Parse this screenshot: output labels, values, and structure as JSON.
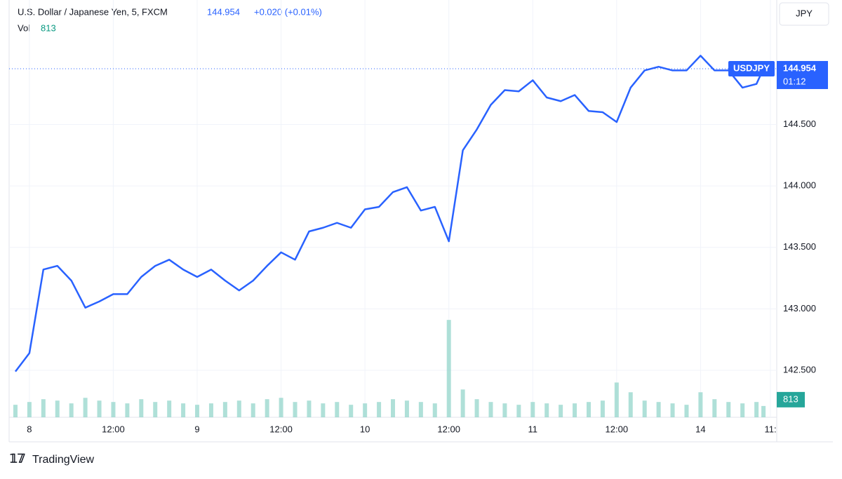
{
  "chart_data": {
    "type": "line",
    "title": "U.S. Dollar / Japanese Yen, 5, FXCM",
    "last_price": 144.954,
    "change": "+0.020 (+0.01%)",
    "last_volume": 813,
    "currency": "JPY",
    "countdown": "01:12",
    "brand": "TradingView",
    "grid": true,
    "x": [
      -2,
      0,
      2,
      4,
      6,
      8,
      10,
      12,
      14,
      16,
      18,
      20,
      22,
      24,
      26,
      28,
      30,
      32,
      34,
      36,
      38,
      40,
      42,
      44,
      46,
      48,
      50,
      52,
      54,
      56,
      58,
      60,
      62,
      64,
      66,
      68,
      70,
      72,
      74,
      76,
      78,
      80,
      82,
      84,
      86,
      88,
      90,
      92,
      94,
      96,
      98,
      100,
      102,
      104,
      105
    ],
    "series": [
      {
        "name": "USDJPY",
        "color": "#2962ff",
        "values": [
          142.49,
          142.64,
          143.32,
          143.35,
          143.23,
          143.01,
          143.06,
          143.12,
          143.12,
          143.26,
          143.35,
          143.4,
          143.32,
          143.26,
          143.32,
          143.23,
          143.15,
          143.23,
          143.35,
          143.46,
          143.4,
          143.63,
          143.66,
          143.7,
          143.66,
          143.81,
          143.83,
          143.95,
          143.99,
          143.8,
          143.83,
          143.55,
          144.29,
          144.46,
          144.66,
          144.78,
          144.77,
          144.86,
          144.72,
          144.69,
          144.74,
          144.61,
          144.6,
          144.52,
          144.8,
          144.94,
          144.97,
          144.94,
          144.94,
          145.06,
          144.94,
          144.94,
          144.8,
          144.83,
          144.954
        ]
      },
      {
        "name": "Vol",
        "type": "bar",
        "axis": "y2",
        "color": "#8dd3c7",
        "values": [
          900,
          1100,
          1300,
          1200,
          1000,
          1400,
          1200,
          1100,
          1000,
          1300,
          1100,
          1200,
          1000,
          900,
          1000,
          1100,
          1200,
          1000,
          1300,
          1400,
          1100,
          1200,
          1000,
          1100,
          900,
          1000,
          1100,
          1300,
          1200,
          1100,
          1000,
          7000,
          2000,
          1300,
          1100,
          1000,
          900,
          1100,
          1000,
          900,
          1000,
          1100,
          1200,
          2500,
          1800,
          1200,
          1100,
          1000,
          900,
          1800,
          1300,
          1100,
          1000,
          1100,
          813
        ]
      }
    ],
    "xlim": [
      -2.9,
      106.9
    ],
    "xticks": [
      {
        "value": 0,
        "label": "8"
      },
      {
        "value": 12,
        "label": "12:00"
      },
      {
        "value": 24,
        "label": "9"
      },
      {
        "value": 36,
        "label": "12:00"
      },
      {
        "value": 48,
        "label": "10"
      },
      {
        "value": 60,
        "label": "12:00"
      },
      {
        "value": 72,
        "label": "11"
      },
      {
        "value": 84,
        "label": "12:00"
      },
      {
        "value": 96,
        "label": "14"
      },
      {
        "value": 106,
        "label": "11:"
      }
    ],
    "ylim": [
      142.118,
      145.513
    ],
    "yticks": [
      {
        "value": 142.5,
        "label": "142.500"
      },
      {
        "value": 143,
        "label": "143.000"
      },
      {
        "value": 143.5,
        "label": "143.500"
      },
      {
        "value": 144,
        "label": "144.000"
      },
      {
        "value": 144.5,
        "label": "144.500"
      }
    ],
    "y2lim": [
      0,
      30000
    ]
  }
}
